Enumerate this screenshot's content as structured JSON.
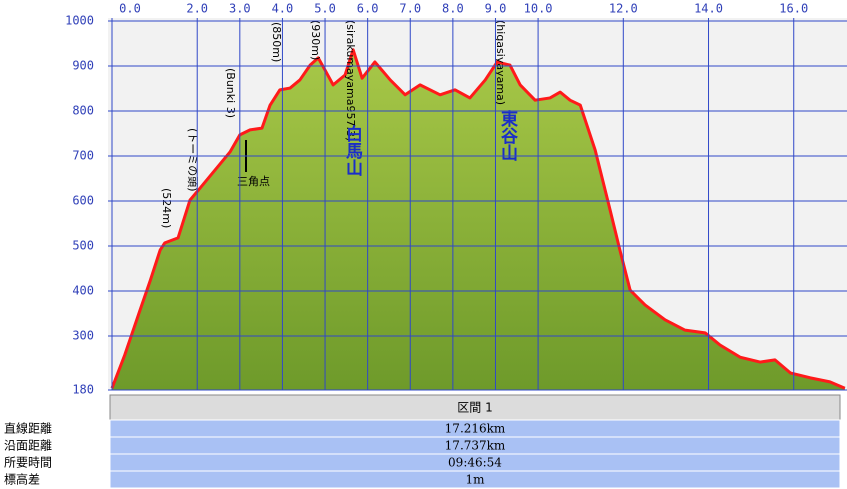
{
  "chart_data": {
    "type": "area",
    "x": [
      0,
      0.3,
      0.66,
      0.9,
      1.13,
      1.24,
      1.55,
      1.83,
      2.07,
      2.42,
      2.77,
      3.0,
      3.24,
      3.52,
      3.71,
      3.94,
      4.18,
      4.41,
      4.65,
      4.84,
      5.0,
      5.19,
      5.47,
      5.66,
      5.87,
      6.17,
      6.53,
      6.88,
      7.23,
      7.7,
      8.05,
      8.4,
      8.76,
      9.04,
      9.34,
      9.58,
      9.93,
      10.28,
      10.52,
      10.75,
      10.99,
      11.34,
      11.69,
      11.92,
      12.16,
      12.51,
      12.98,
      13.45,
      13.92,
      14.27,
      14.74,
      15.21,
      15.56,
      15.92,
      16.39,
      16.85,
      17.2
    ],
    "values": [
      184,
      258,
      358,
      424,
      491,
      507,
      518,
      602,
      629,
      669,
      709,
      747,
      758,
      762,
      813,
      847,
      851,
      869,
      902,
      918,
      891,
      858,
      880,
      936,
      873,
      909,
      869,
      836,
      858,
      836,
      847,
      829,
      869,
      909,
      902,
      858,
      824,
      829,
      842,
      824,
      813,
      713,
      580,
      491,
      402,
      369,
      336,
      313,
      307,
      280,
      253,
      242,
      247,
      218,
      207,
      198,
      184
    ],
    "color": "#ff1a1a",
    "area_color": "#6e9a2a",
    "xlim": [
      0,
      17.25
    ],
    "xticks": [
      {
        "value": 0,
        "label": "0.0"
      },
      {
        "value": 2,
        "label": "2.0"
      },
      {
        "value": 3,
        "label": "3.0"
      },
      {
        "value": 4,
        "label": "4.0"
      },
      {
        "value": 5,
        "label": "5.0"
      },
      {
        "value": 6,
        "label": "6.0"
      },
      {
        "value": 7,
        "label": "7.0"
      },
      {
        "value": 8,
        "label": "8.0"
      },
      {
        "value": 9,
        "label": "9.0"
      },
      {
        "value": 10,
        "label": "10.0"
      },
      {
        "value": 12,
        "label": "12.0"
      },
      {
        "value": 14,
        "label": "14.0"
      },
      {
        "value": 16,
        "label": "16.0"
      }
    ],
    "ylim": [
      180,
      1000
    ],
    "yticks": [
      180,
      300,
      400,
      500,
      600,
      700,
      800,
      900,
      1000
    ],
    "grid": true,
    "annotations": [
      "(524m)",
      "(トーミの頭)",
      "(Bunki 3)",
      "(850m)",
      "(930m)",
      "(sirakumayama957.3)",
      "(higasiyayama)",
      "三角点",
      "白馬山",
      "東谷山"
    ]
  },
  "table": {
    "header": "区間 1",
    "rows": [
      [
        "直線距離",
        "17.216km"
      ],
      [
        "沿面距離",
        "17.737km"
      ],
      [
        "所要時間",
        "09:46:54"
      ],
      [
        "標高差",
        "1m"
      ]
    ]
  }
}
